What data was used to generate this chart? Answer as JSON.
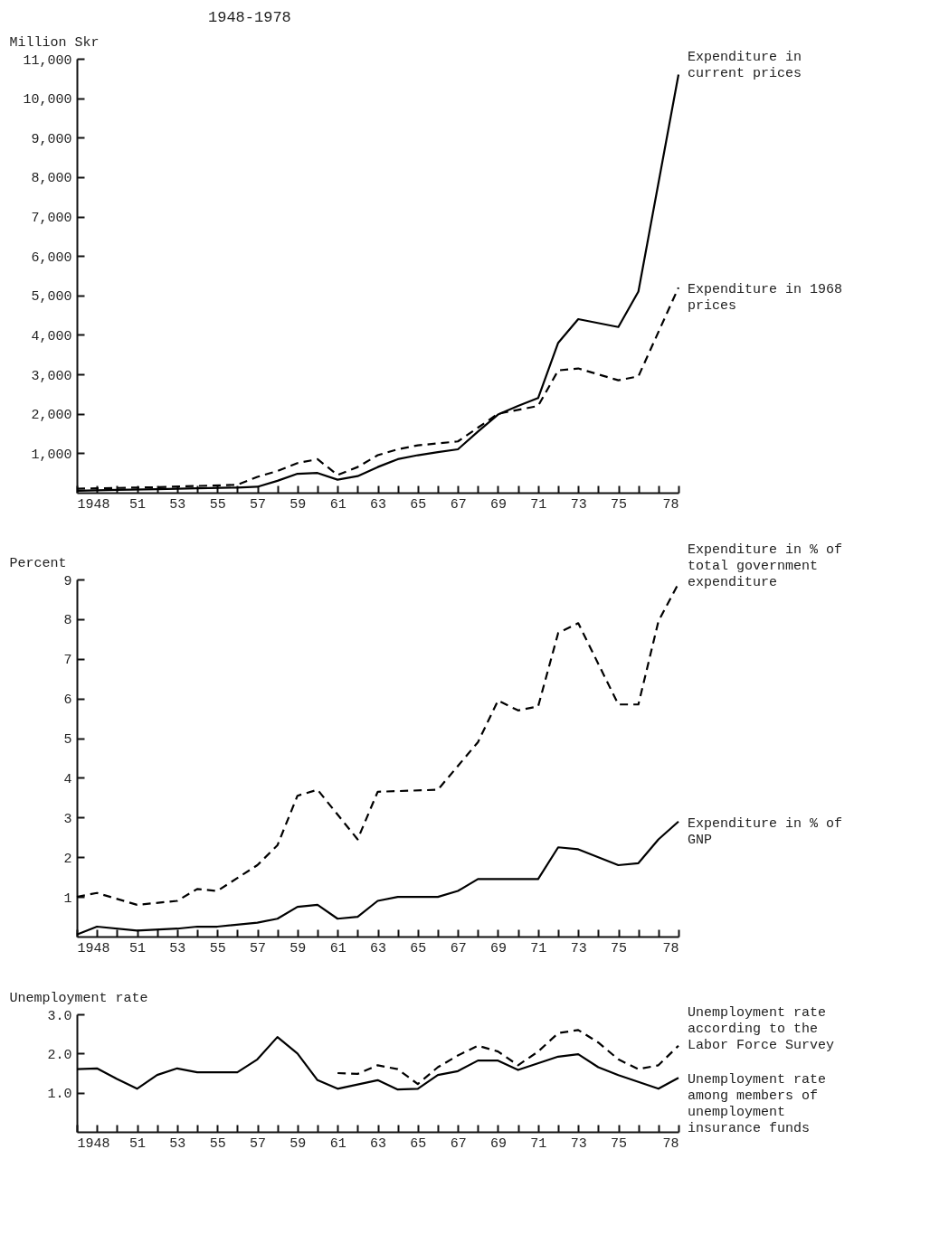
{
  "chart_data": [
    {
      "type": "line",
      "title": "1948-1978",
      "ylabel": "Million Skr",
      "legend": false,
      "grid": false,
      "xlim": [
        1948,
        1978
      ],
      "ylim": [
        0,
        11000
      ],
      "xticks": [
        {
          "value": 1948,
          "label": "1948"
        },
        {
          "value": 1949,
          "label": null
        },
        {
          "value": 1950,
          "label": null
        },
        {
          "value": 1951,
          "label": "51"
        },
        {
          "value": 1952,
          "label": null
        },
        {
          "value": 1953,
          "label": "53"
        },
        {
          "value": 1954,
          "label": null
        },
        {
          "value": 1955,
          "label": "55"
        },
        {
          "value": 1956,
          "label": null
        },
        {
          "value": 1957,
          "label": "57"
        },
        {
          "value": 1958,
          "label": null
        },
        {
          "value": 1959,
          "label": "59"
        },
        {
          "value": 1960,
          "label": null
        },
        {
          "value": 1961,
          "label": "61"
        },
        {
          "value": 1962,
          "label": null
        },
        {
          "value": 1963,
          "label": "63"
        },
        {
          "value": 1964,
          "label": null
        },
        {
          "value": 1965,
          "label": "65"
        },
        {
          "value": 1966,
          "label": null
        },
        {
          "value": 1967,
          "label": "67"
        },
        {
          "value": 1968,
          "label": null
        },
        {
          "value": 1969,
          "label": "69"
        },
        {
          "value": 1970,
          "label": null
        },
        {
          "value": 1971,
          "label": "71"
        },
        {
          "value": 1972,
          "label": null
        },
        {
          "value": 1973,
          "label": "73"
        },
        {
          "value": 1974,
          "label": null
        },
        {
          "value": 1975,
          "label": "75"
        },
        {
          "value": 1976,
          "label": null
        },
        {
          "value": 1977,
          "label": null
        },
        {
          "value": 1978,
          "label": "78"
        }
      ],
      "yticks": [
        {
          "value": 1000,
          "label": "1,000"
        },
        {
          "value": 2000,
          "label": "2,000"
        },
        {
          "value": 3000,
          "label": "3,000"
        },
        {
          "value": 4000,
          "label": "4,000"
        },
        {
          "value": 5000,
          "label": "5,000"
        },
        {
          "value": 6000,
          "label": "6,000"
        },
        {
          "value": 7000,
          "label": "7,000"
        },
        {
          "value": 8000,
          "label": "8,000"
        },
        {
          "value": 9000,
          "label": "9,000"
        },
        {
          "value": 10000,
          "label": "10,000"
        },
        {
          "value": 11000,
          "label": "11,000"
        }
      ],
      "series": [
        {
          "name": "Expenditure in current prices",
          "color": "#000000",
          "line_style": "solid",
          "x": [
            1948,
            1950,
            1952,
            1954,
            1956,
            1957,
            1958,
            1959,
            1960,
            1961,
            1962,
            1963,
            1964,
            1965,
            1966,
            1967,
            1968,
            1969,
            1970,
            1971,
            1972,
            1973,
            1975,
            1976,
            1978
          ],
          "values": [
            50,
            70,
            90,
            110,
            130,
            150,
            300,
            480,
            500,
            330,
            420,
            650,
            850,
            950,
            1030,
            1100,
            1550,
            1980,
            2200,
            2400,
            3800,
            4400,
            4200,
            5100,
            10600
          ]
        },
        {
          "name": "Expenditure in 1968 prices",
          "color": "#000000",
          "line_style": "dashed",
          "x": [
            1948,
            1950,
            1952,
            1954,
            1956,
            1957,
            1958,
            1959,
            1960,
            1961,
            1962,
            1963,
            1964,
            1965,
            1966,
            1967,
            1968,
            1969,
            1970,
            1971,
            1972,
            1973,
            1975,
            1976,
            1978
          ],
          "values": [
            100,
            120,
            140,
            170,
            200,
            400,
            550,
            750,
            850,
            450,
            650,
            950,
            1100,
            1200,
            1250,
            1300,
            1650,
            2000,
            2100,
            2200,
            3100,
            3150,
            2850,
            2950,
            5200
          ]
        }
      ]
    },
    {
      "type": "line",
      "ylabel": "Percent",
      "legend": false,
      "grid": false,
      "xlim": [
        1948,
        1978
      ],
      "ylim": [
        0,
        9
      ],
      "xticks": [
        {
          "value": 1948,
          "label": "1948"
        },
        {
          "value": 1949,
          "label": null
        },
        {
          "value": 1950,
          "label": null
        },
        {
          "value": 1951,
          "label": "51"
        },
        {
          "value": 1952,
          "label": null
        },
        {
          "value": 1953,
          "label": "53"
        },
        {
          "value": 1954,
          "label": null
        },
        {
          "value": 1955,
          "label": "55"
        },
        {
          "value": 1956,
          "label": null
        },
        {
          "value": 1957,
          "label": "57"
        },
        {
          "value": 1958,
          "label": null
        },
        {
          "value": 1959,
          "label": "59"
        },
        {
          "value": 1960,
          "label": null
        },
        {
          "value": 1961,
          "label": "61"
        },
        {
          "value": 1962,
          "label": null
        },
        {
          "value": 1963,
          "label": "63"
        },
        {
          "value": 1964,
          "label": null
        },
        {
          "value": 1965,
          "label": "65"
        },
        {
          "value": 1966,
          "label": null
        },
        {
          "value": 1967,
          "label": "67"
        },
        {
          "value": 1968,
          "label": null
        },
        {
          "value": 1969,
          "label": "69"
        },
        {
          "value": 1970,
          "label": null
        },
        {
          "value": 1971,
          "label": "71"
        },
        {
          "value": 1972,
          "label": null
        },
        {
          "value": 1973,
          "label": "73"
        },
        {
          "value": 1974,
          "label": null
        },
        {
          "value": 1975,
          "label": "75"
        },
        {
          "value": 1976,
          "label": null
        },
        {
          "value": 1977,
          "label": null
        },
        {
          "value": 1978,
          "label": "78"
        }
      ],
      "yticks": [
        1,
        2,
        3,
        4,
        5,
        6,
        7,
        8,
        9
      ],
      "series": [
        {
          "name": "Expenditure in % of total government expenditure",
          "color": "#000000",
          "line_style": "dashed",
          "x": [
            1948,
            1949,
            1951,
            1953,
            1954,
            1955,
            1957,
            1958,
            1959,
            1960,
            1962,
            1963,
            1966,
            1968,
            1969,
            1970,
            1971,
            1972,
            1973,
            1975,
            1976,
            1977,
            1978
          ],
          "values": [
            1.0,
            1.1,
            0.8,
            0.9,
            1.2,
            1.15,
            1.8,
            2.3,
            3.55,
            3.7,
            2.45,
            3.65,
            3.7,
            4.9,
            5.95,
            5.7,
            5.8,
            7.65,
            7.9,
            5.85,
            5.85,
            7.95,
            8.9
          ]
        },
        {
          "name": "Expenditure in % of GNP",
          "color": "#000000",
          "line_style": "solid",
          "x": [
            1948,
            1949,
            1951,
            1953,
            1954,
            1955,
            1957,
            1958,
            1959,
            1960,
            1961,
            1962,
            1963,
            1964,
            1966,
            1967,
            1968,
            1971,
            1972,
            1973,
            1975,
            1976,
            1977,
            1978
          ],
          "values": [
            0.05,
            0.25,
            0.15,
            0.2,
            0.25,
            0.25,
            0.35,
            0.45,
            0.75,
            0.8,
            0.45,
            0.5,
            0.9,
            1.0,
            1.0,
            1.15,
            1.45,
            1.45,
            2.25,
            2.2,
            1.8,
            1.85,
            2.45,
            2.9
          ]
        }
      ]
    },
    {
      "type": "line",
      "ylabel": "Unemployment rate",
      "legend": false,
      "grid": false,
      "xlim": [
        1948,
        1978
      ],
      "ylim": [
        0,
        3
      ],
      "xticks": [
        {
          "value": 1948,
          "label": "1948"
        },
        {
          "value": 1949,
          "label": null
        },
        {
          "value": 1950,
          "label": null
        },
        {
          "value": 1951,
          "label": "51"
        },
        {
          "value": 1952,
          "label": null
        },
        {
          "value": 1953,
          "label": "53"
        },
        {
          "value": 1954,
          "label": null
        },
        {
          "value": 1955,
          "label": "55"
        },
        {
          "value": 1956,
          "label": null
        },
        {
          "value": 1957,
          "label": "57"
        },
        {
          "value": 1958,
          "label": null
        },
        {
          "value": 1959,
          "label": "59"
        },
        {
          "value": 1960,
          "label": null
        },
        {
          "value": 1961,
          "label": "61"
        },
        {
          "value": 1962,
          "label": null
        },
        {
          "value": 1963,
          "label": "63"
        },
        {
          "value": 1964,
          "label": null
        },
        {
          "value": 1965,
          "label": "65"
        },
        {
          "value": 1966,
          "label": null
        },
        {
          "value": 1967,
          "label": "67"
        },
        {
          "value": 1968,
          "label": null
        },
        {
          "value": 1969,
          "label": "69"
        },
        {
          "value": 1970,
          "label": null
        },
        {
          "value": 1971,
          "label": "71"
        },
        {
          "value": 1972,
          "label": null
        },
        {
          "value": 1973,
          "label": "73"
        },
        {
          "value": 1974,
          "label": null
        },
        {
          "value": 1975,
          "label": "75"
        },
        {
          "value": 1976,
          "label": null
        },
        {
          "value": 1977,
          "label": null
        },
        {
          "value": 1978,
          "label": "78"
        }
      ],
      "yticks": [
        {
          "value": 1,
          "label": "1.0"
        },
        {
          "value": 2,
          "label": "2.0"
        },
        {
          "value": 3,
          "label": "3.0"
        }
      ],
      "series": [
        {
          "name": "Unemployment rate according to the Labor Force Survey",
          "color": "#000000",
          "line_style": "dashed",
          "x": [
            1961,
            1962,
            1963,
            1964,
            1965,
            1966,
            1967,
            1968,
            1969,
            1970,
            1971,
            1972,
            1973,
            1974,
            1975,
            1976,
            1977,
            1978
          ],
          "values": [
            1.5,
            1.48,
            1.7,
            1.6,
            1.22,
            1.65,
            1.95,
            2.2,
            2.05,
            1.7,
            2.05,
            2.52,
            2.6,
            2.28,
            1.85,
            1.6,
            1.7,
            2.2
          ]
        },
        {
          "name": "Unemployment rate among members of unemployment insurance funds",
          "color": "#000000",
          "line_style": "solid",
          "x": [
            1948,
            1949,
            1950,
            1951,
            1952,
            1953,
            1954,
            1956,
            1957,
            1958,
            1959,
            1960,
            1961,
            1963,
            1964,
            1965,
            1966,
            1967,
            1968,
            1969,
            1970,
            1972,
            1973,
            1974,
            1975,
            1977,
            1978
          ],
          "values": [
            1.6,
            1.62,
            1.35,
            1.1,
            1.45,
            1.62,
            1.52,
            1.52,
            1.85,
            2.42,
            2.0,
            1.32,
            1.1,
            1.32,
            1.08,
            1.1,
            1.45,
            1.55,
            1.82,
            1.82,
            1.58,
            1.92,
            1.98,
            1.65,
            1.45,
            1.1,
            1.38
          ]
        }
      ]
    }
  ]
}
